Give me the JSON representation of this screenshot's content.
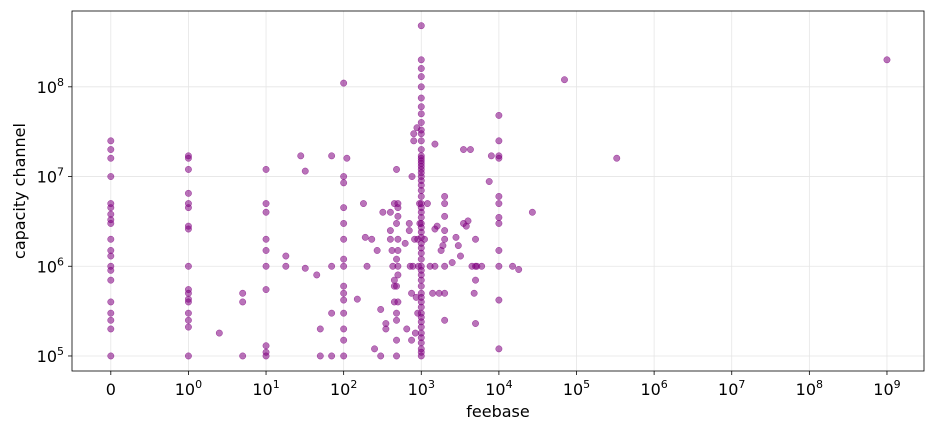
{
  "chart_data": {
    "type": "scatter",
    "xlabel": "feebase",
    "ylabel": "capacity channel",
    "x_scale": "symlog",
    "y_scale": "log",
    "xlim": [
      -0.5,
      3000000000
    ],
    "ylim": [
      68000,
      700000000
    ],
    "grid": true,
    "color": "#800080",
    "x_ticks": [
      {
        "value": 0,
        "base": "0",
        "exp": ""
      },
      {
        "value": 1,
        "base": "10",
        "exp": "0"
      },
      {
        "value": 10,
        "base": "10",
        "exp": "1"
      },
      {
        "value": 100,
        "base": "10",
        "exp": "2"
      },
      {
        "value": 1000,
        "base": "10",
        "exp": "3"
      },
      {
        "value": 10000,
        "base": "10",
        "exp": "4"
      },
      {
        "value": 100000,
        "base": "10",
        "exp": "5"
      },
      {
        "value": 1000000,
        "base": "10",
        "exp": "6"
      },
      {
        "value": 10000000,
        "base": "10",
        "exp": "7"
      },
      {
        "value": 100000000,
        "base": "10",
        "exp": "8"
      },
      {
        "value": 1000000000,
        "base": "10",
        "exp": "9"
      }
    ],
    "y_ticks": [
      {
        "value": 100000,
        "base": "10",
        "exp": "5"
      },
      {
        "value": 1000000,
        "base": "10",
        "exp": "6"
      },
      {
        "value": 10000000,
        "base": "10",
        "exp": "7"
      },
      {
        "value": 100000000,
        "base": "10",
        "exp": "8"
      }
    ],
    "series": [
      {
        "points": [
          [
            0,
            25000000
          ],
          [
            0,
            20000000
          ],
          [
            0,
            16000000
          ],
          [
            0,
            10000000
          ],
          [
            0,
            5000000
          ],
          [
            0,
            4500000
          ],
          [
            0,
            3800000
          ],
          [
            0,
            3300000
          ],
          [
            0,
            3000000
          ],
          [
            0,
            2000000
          ],
          [
            0,
            1500000
          ],
          [
            0,
            1300000
          ],
          [
            0,
            1000000
          ],
          [
            0,
            900000
          ],
          [
            0,
            700000
          ],
          [
            0,
            400000
          ],
          [
            0,
            300000
          ],
          [
            0,
            250000
          ],
          [
            0,
            200000
          ],
          [
            0,
            100000
          ],
          [
            1,
            17000000
          ],
          [
            1,
            16000000
          ],
          [
            1,
            12000000
          ],
          [
            1,
            6500000
          ],
          [
            1,
            5000000
          ],
          [
            1,
            4500000
          ],
          [
            1,
            2800000
          ],
          [
            1,
            2600000
          ],
          [
            1,
            1000000
          ],
          [
            1,
            550000
          ],
          [
            1,
            500000
          ],
          [
            1,
            430000
          ],
          [
            1,
            400000
          ],
          [
            1,
            300000
          ],
          [
            1,
            250000
          ],
          [
            1,
            210000
          ],
          [
            1,
            100000
          ],
          [
            2.5,
            180000
          ],
          [
            5,
            500000
          ],
          [
            5,
            400000
          ],
          [
            5,
            100000
          ],
          [
            10,
            12000000
          ],
          [
            10,
            5000000
          ],
          [
            10,
            4000000
          ],
          [
            10,
            2000000
          ],
          [
            10,
            1500000
          ],
          [
            10,
            1000000
          ],
          [
            10,
            550000
          ],
          [
            10,
            130000
          ],
          [
            10,
            110000
          ],
          [
            10,
            100000
          ],
          [
            18,
            1300000
          ],
          [
            18,
            1000000
          ],
          [
            28,
            17000000
          ],
          [
            32,
            11500000
          ],
          [
            32,
            950000
          ],
          [
            45,
            800000
          ],
          [
            50,
            200000
          ],
          [
            50,
            100000
          ],
          [
            70,
            17000000
          ],
          [
            70,
            1000000
          ],
          [
            70,
            300000
          ],
          [
            70,
            100000
          ],
          [
            100,
            110000000
          ],
          [
            100,
            10000000
          ],
          [
            100,
            8500000
          ],
          [
            100,
            4500000
          ],
          [
            100,
            3000000
          ],
          [
            100,
            2000000
          ],
          [
            100,
            1200000
          ],
          [
            100,
            1000000
          ],
          [
            100,
            600000
          ],
          [
            100,
            500000
          ],
          [
            100,
            420000
          ],
          [
            100,
            300000
          ],
          [
            100,
            200000
          ],
          [
            100,
            150000
          ],
          [
            100,
            100000
          ],
          [
            110,
            16000000
          ],
          [
            150,
            430000
          ],
          [
            180,
            5000000
          ],
          [
            190,
            2100000
          ],
          [
            200,
            1000000
          ],
          [
            230,
            2000000
          ],
          [
            250,
            120000
          ],
          [
            270,
            1500000
          ],
          [
            300,
            330000
          ],
          [
            300,
            100000
          ],
          [
            320,
            4000000
          ],
          [
            350,
            200000
          ],
          [
            350,
            230000
          ],
          [
            400,
            4000000
          ],
          [
            400,
            2500000
          ],
          [
            400,
            2000000
          ],
          [
            420,
            1500000
          ],
          [
            430,
            1000000
          ],
          [
            450,
            700000
          ],
          [
            450,
            600000
          ],
          [
            450,
            400000
          ],
          [
            450,
            5000000
          ],
          [
            480,
            12000000
          ],
          [
            480,
            3000000
          ],
          [
            480,
            1200000
          ],
          [
            480,
            600000
          ],
          [
            480,
            300000
          ],
          [
            480,
            250000
          ],
          [
            480,
            150000
          ],
          [
            480,
            100000
          ],
          [
            500,
            5000000
          ],
          [
            500,
            4500000
          ],
          [
            500,
            3600000
          ],
          [
            500,
            2000000
          ],
          [
            500,
            1500000
          ],
          [
            500,
            1000000
          ],
          [
            500,
            800000
          ],
          [
            500,
            400000
          ],
          [
            620,
            1800000
          ],
          [
            650,
            200000
          ],
          [
            700,
            3000000
          ],
          [
            700,
            2500000
          ],
          [
            720,
            1000000
          ],
          [
            750,
            500000
          ],
          [
            750,
            150000
          ],
          [
            760,
            10000000
          ],
          [
            780,
            1000000
          ],
          [
            800,
            30000000
          ],
          [
            800,
            25000000
          ],
          [
            820,
            2000000
          ],
          [
            840,
            180000
          ],
          [
            860,
            450000
          ],
          [
            880,
            35000000
          ],
          [
            900,
            300000
          ],
          [
            900,
            2000000
          ],
          [
            920,
            1000000
          ],
          [
            950,
            5000000
          ],
          [
            960,
            3000000
          ],
          [
            1000,
            480000000
          ],
          [
            1000,
            200000000
          ],
          [
            1000,
            160000000
          ],
          [
            1000,
            130000000
          ],
          [
            1000,
            100000000
          ],
          [
            1000,
            75000000
          ],
          [
            1000,
            60000000
          ],
          [
            1000,
            50000000
          ],
          [
            1000,
            40000000
          ],
          [
            1000,
            33000000
          ],
          [
            1000,
            30000000
          ],
          [
            1000,
            25000000
          ],
          [
            1000,
            20000000
          ],
          [
            1000,
            17000000
          ],
          [
            1000,
            16000000
          ],
          [
            1000,
            15000000
          ],
          [
            1000,
            14000000
          ],
          [
            1000,
            13000000
          ],
          [
            1000,
            12000000
          ],
          [
            1000,
            11000000
          ],
          [
            1000,
            10000000
          ],
          [
            1000,
            9000000
          ],
          [
            1000,
            8000000
          ],
          [
            1000,
            7000000
          ],
          [
            1000,
            6000000
          ],
          [
            1000,
            5000000
          ],
          [
            1000,
            4500000
          ],
          [
            1000,
            4000000
          ],
          [
            1000,
            3500000
          ],
          [
            1000,
            3000000
          ],
          [
            1000,
            2700000
          ],
          [
            1000,
            2400000
          ],
          [
            1000,
            2100000
          ],
          [
            1000,
            1800000
          ],
          [
            1000,
            1600000
          ],
          [
            1000,
            1400000
          ],
          [
            1000,
            1200000
          ],
          [
            1000,
            1000000
          ],
          [
            1000,
            900000
          ],
          [
            1000,
            800000
          ],
          [
            1000,
            700000
          ],
          [
            1000,
            600000
          ],
          [
            1000,
            500000
          ],
          [
            1000,
            450000
          ],
          [
            1000,
            400000
          ],
          [
            1000,
            350000
          ],
          [
            1000,
            300000
          ],
          [
            1000,
            270000
          ],
          [
            1000,
            240000
          ],
          [
            1000,
            210000
          ],
          [
            1000,
            180000
          ],
          [
            1000,
            160000
          ],
          [
            1000,
            140000
          ],
          [
            1000,
            120000
          ],
          [
            1000,
            110000
          ],
          [
            1000,
            100000
          ],
          [
            1100,
            2000000
          ],
          [
            1200,
            5000000
          ],
          [
            1300,
            1000000
          ],
          [
            1400,
            500000
          ],
          [
            1500,
            23000000
          ],
          [
            1500,
            2600000
          ],
          [
            1500,
            1000000
          ],
          [
            1600,
            2800000
          ],
          [
            1700,
            500000
          ],
          [
            1800,
            1500000
          ],
          [
            1900,
            1700000
          ],
          [
            2000,
            6000000
          ],
          [
            2000,
            5000000
          ],
          [
            2000,
            3600000
          ],
          [
            2000,
            2500000
          ],
          [
            2000,
            2000000
          ],
          [
            2000,
            1000000
          ],
          [
            2000,
            500000
          ],
          [
            2000,
            250000
          ],
          [
            2500,
            1100000
          ],
          [
            2800,
            2100000
          ],
          [
            3000,
            1700000
          ],
          [
            3200,
            1300000
          ],
          [
            3500,
            20000000
          ],
          [
            3500,
            3000000
          ],
          [
            3800,
            2800000
          ],
          [
            4000,
            3200000
          ],
          [
            4300,
            20000000
          ],
          [
            4500,
            1000000
          ],
          [
            4800,
            500000
          ],
          [
            5000,
            2000000
          ],
          [
            5000,
            700000
          ],
          [
            5000,
            230000
          ],
          [
            5000,
            1000000
          ],
          [
            5200,
            1000000
          ],
          [
            6000,
            1000000
          ],
          [
            7500,
            8800000
          ],
          [
            8000,
            17000000
          ],
          [
            10000,
            48000000
          ],
          [
            10000,
            25000000
          ],
          [
            10000,
            17000000
          ],
          [
            10000,
            16000000
          ],
          [
            10000,
            6000000
          ],
          [
            10000,
            5000000
          ],
          [
            10000,
            3500000
          ],
          [
            10000,
            3000000
          ],
          [
            10000,
            1500000
          ],
          [
            10000,
            1000000
          ],
          [
            10000,
            420000
          ],
          [
            10000,
            120000
          ],
          [
            15000,
            1000000
          ],
          [
            18000,
            920000
          ],
          [
            27000,
            4000000
          ],
          [
            70000,
            120000000
          ],
          [
            330000,
            16000000
          ],
          [
            1000000000,
            200000000
          ]
        ]
      }
    ]
  }
}
